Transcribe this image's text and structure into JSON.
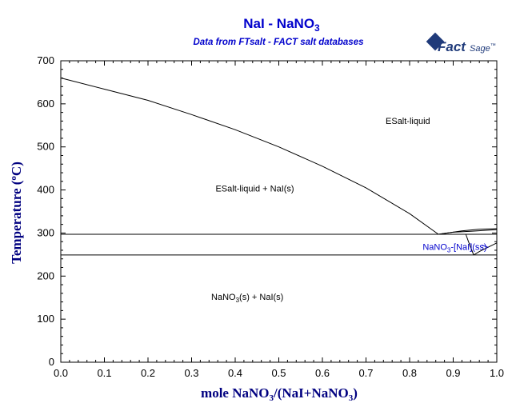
{
  "chart_data": {
    "type": "line",
    "title": {
      "main": "NaI - NaNO",
      "sub": "3"
    },
    "subtitle": "Data from FTsalt - FACT salt databases",
    "logo": {
      "text": "Fact",
      "suffix": "Sage",
      "mark": "™"
    },
    "xlabel": {
      "before": "mole NaNO",
      "sub": "3",
      "after": "/(NaI+NaNO",
      "sub2": "3",
      "end": ")"
    },
    "ylabel": {
      "before": "Temperature (",
      "sup": "o",
      "after": "C)"
    },
    "xlim": [
      0,
      1
    ],
    "ylim": [
      0,
      700
    ],
    "x_ticks": [
      "0.0",
      "0.1",
      "0.2",
      "0.3",
      "0.4",
      "0.5",
      "0.6",
      "0.7",
      "0.8",
      "0.9",
      "1.0"
    ],
    "y_ticks": [
      "0",
      "100",
      "200",
      "300",
      "400",
      "500",
      "600",
      "700"
    ],
    "series": [
      {
        "values": [
          [
            0.0,
            660
          ],
          [
            0.1,
            634
          ],
          [
            0.2,
            608
          ],
          [
            0.3,
            575
          ],
          [
            0.4,
            540
          ],
          [
            0.5,
            500
          ],
          [
            0.6,
            455
          ],
          [
            0.7,
            405
          ],
          [
            0.8,
            345
          ],
          [
            0.866,
            297
          ]
        ]
      },
      {
        "values": [
          [
            0.0,
            297
          ],
          [
            1.0,
            297
          ]
        ]
      },
      {
        "values": [
          [
            0.0,
            249
          ],
          [
            1.0,
            249
          ]
        ]
      },
      {
        "values": [
          [
            0.866,
            297
          ],
          [
            0.9,
            302
          ],
          [
            0.94,
            304
          ],
          [
            0.97,
            306
          ],
          [
            1.0,
            308
          ]
        ]
      },
      {
        "values": [
          [
            0.866,
            297
          ],
          [
            0.92,
            305
          ],
          [
            0.96,
            309
          ],
          [
            1.0,
            310
          ]
        ]
      },
      {
        "values": [
          [
            0.929,
            297
          ],
          [
            0.935,
            280
          ],
          [
            0.942,
            262
          ],
          [
            0.947,
            249
          ]
        ]
      },
      {
        "values": [
          [
            0.947,
            249
          ],
          [
            0.96,
            257
          ],
          [
            0.98,
            267
          ],
          [
            1.0,
            277
          ]
        ]
      }
    ],
    "annotations": [
      {
        "text": "ESalt-liquid",
        "x": 0.745,
        "y": 553
      },
      {
        "text": "ESalt-liquid + NaI(s)",
        "x": 0.355,
        "y": 396
      },
      {
        "text": {
          "before": "NaNO",
          "sub": "3",
          "after": "(s) + NaI(s)"
        },
        "x": 0.345,
        "y": 145
      },
      {
        "text": {
          "before": "NaNO",
          "sub": "3",
          "after": "-[NaI](ss)"
        },
        "x": 0.83,
        "y": 261,
        "color": "#0000cc",
        "arrow_to": [
          0.965,
          272
        ]
      }
    ],
    "grid": false,
    "legend": "none"
  }
}
